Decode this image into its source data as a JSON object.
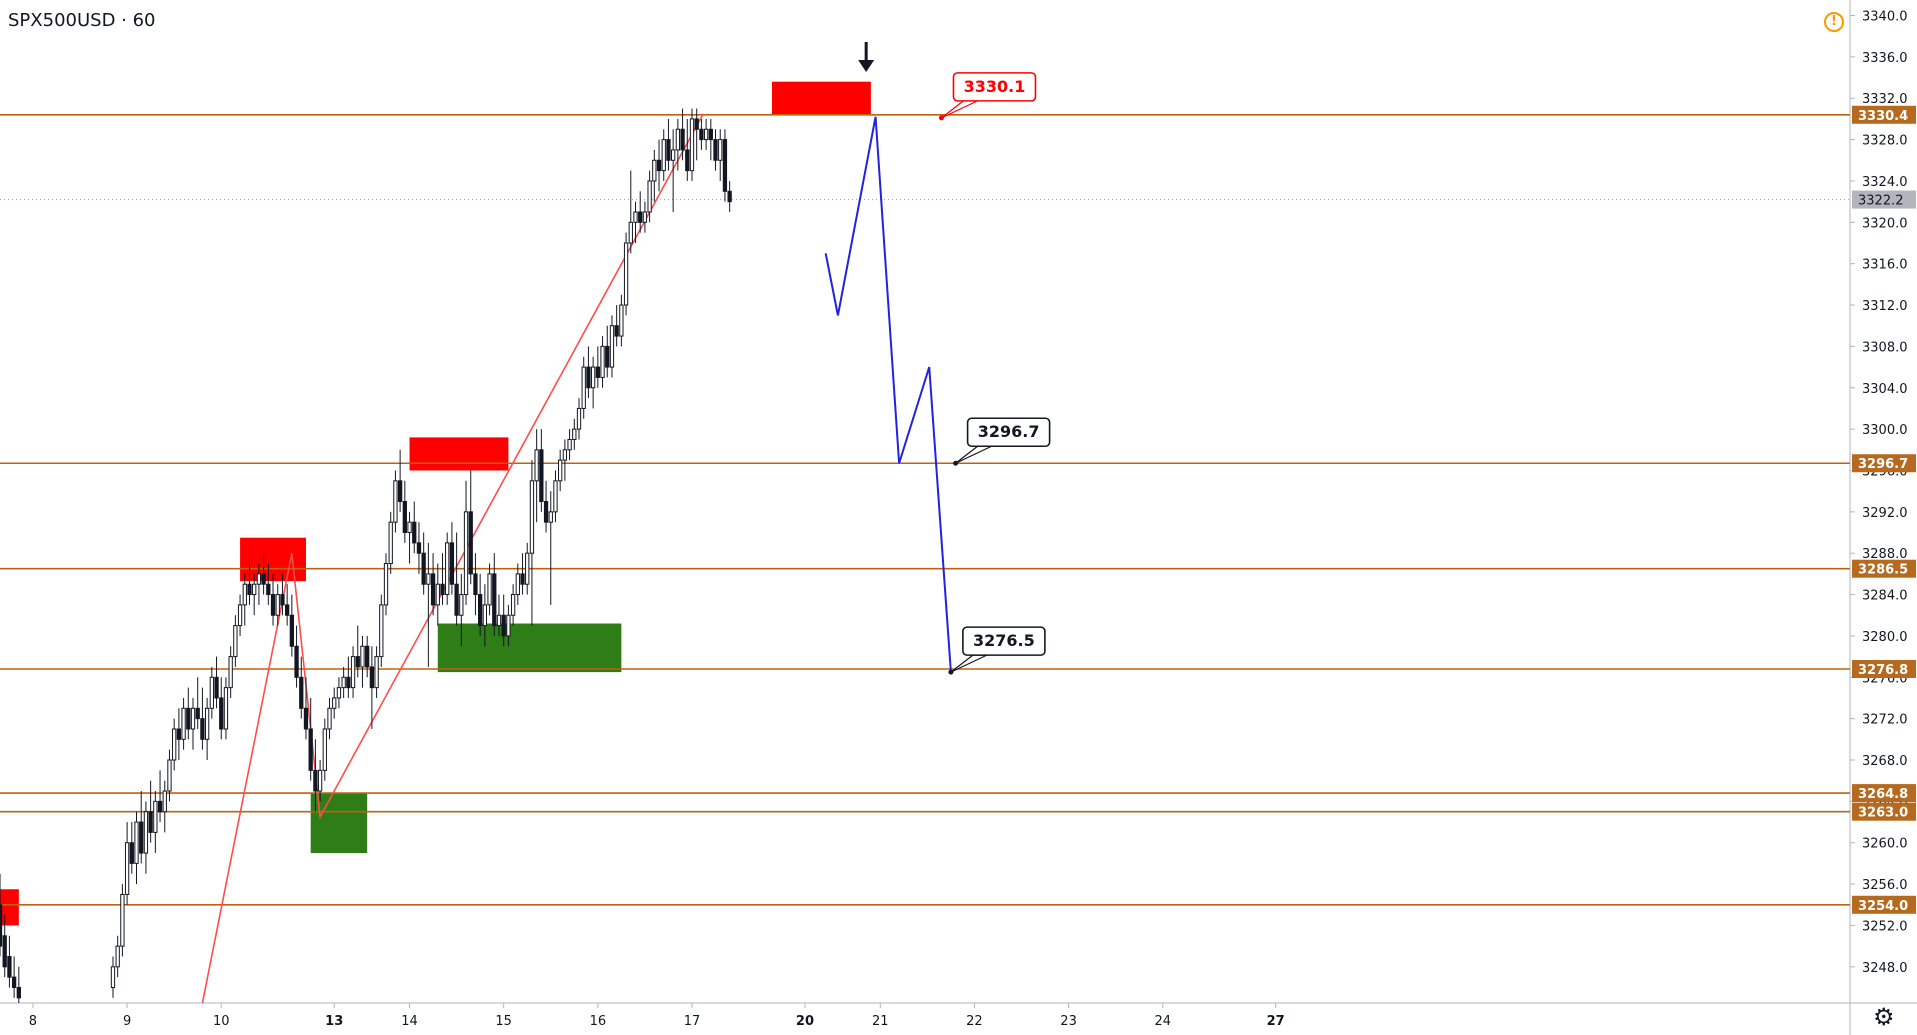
{
  "header": {
    "symbol": "SPX500USD · 60"
  },
  "alert_icon": "!",
  "settings_icon": "⚙",
  "chart_data": {
    "type": "candlestick",
    "title": "SPX500USD · 60",
    "y_range": [
      3244.5,
      3341.5
    ],
    "x_range": [
      7.65,
      27.3
    ],
    "y_ticks": [
      3248.0,
      3252.0,
      3256.0,
      3260.0,
      3264.0,
      3268.0,
      3272.0,
      3276.0,
      3280.0,
      3284.0,
      3288.0,
      3292.0,
      3296.0,
      3300.0,
      3304.0,
      3308.0,
      3312.0,
      3316.0,
      3320.0,
      3324.0,
      3328.0,
      3332.0,
      3336.0,
      3340.0
    ],
    "x_ticks": [
      {
        "label": "8",
        "x": 8.0,
        "bold": false
      },
      {
        "label": "9",
        "x": 9.0,
        "bold": false
      },
      {
        "label": "10",
        "x": 10.0,
        "bold": false
      },
      {
        "label": "13",
        "x": 11.2,
        "bold": true
      },
      {
        "label": "14",
        "x": 12.0,
        "bold": false
      },
      {
        "label": "15",
        "x": 13.0,
        "bold": false
      },
      {
        "label": "16",
        "x": 14.0,
        "bold": false
      },
      {
        "label": "17",
        "x": 15.0,
        "bold": false
      },
      {
        "label": "20",
        "x": 16.2,
        "bold": true
      },
      {
        "label": "21",
        "x": 17.0,
        "bold": false
      },
      {
        "label": "22",
        "x": 18.0,
        "bold": false
      },
      {
        "label": "23",
        "x": 19.0,
        "bold": false
      },
      {
        "label": "24",
        "x": 20.0,
        "bold": false
      },
      {
        "label": "27",
        "x": 21.2,
        "bold": true
      }
    ],
    "horizontal_levels": [
      {
        "value": 3330.4,
        "label": "3330.4"
      },
      {
        "value": 3296.7,
        "label": "3296.7"
      },
      {
        "value": 3286.5,
        "label": "3286.5"
      },
      {
        "value": 3276.8,
        "label": "3276.8"
      },
      {
        "value": 3264.8,
        "label": "3264.8"
      },
      {
        "value": 3263.0,
        "label": "3263.0"
      },
      {
        "value": 3254.0,
        "label": "3254.0"
      }
    ],
    "last_price": {
      "value": 3322.2,
      "label": "3322.2"
    },
    "candles": [
      [
        7.65,
        3254,
        3257,
        3249,
        3250
      ],
      [
        7.7,
        3251,
        3253,
        3247,
        3248
      ],
      [
        7.75,
        3249,
        3251,
        3246,
        3247
      ],
      [
        7.8,
        3247,
        3249,
        3245,
        3246
      ],
      [
        7.85,
        3246,
        3248,
        3244.5,
        3245
      ],
      [
        8.85,
        3246,
        3249,
        3245,
        3248
      ],
      [
        8.9,
        3248,
        3251,
        3247,
        3250
      ],
      [
        8.95,
        3250,
        3256,
        3249,
        3255
      ],
      [
        9.0,
        3255,
        3262,
        3254,
        3260
      ],
      [
        9.05,
        3260,
        3262,
        3257,
        3258
      ],
      [
        9.1,
        3258,
        3263,
        3256,
        3262
      ],
      [
        9.15,
        3262,
        3265,
        3258,
        3259
      ],
      [
        9.2,
        3259,
        3264,
        3257,
        3263
      ],
      [
        9.25,
        3263,
        3266,
        3260,
        3261
      ],
      [
        9.3,
        3261,
        3265,
        3259,
        3264
      ],
      [
        9.35,
        3264,
        3267,
        3262,
        3263
      ],
      [
        9.4,
        3263,
        3266,
        3261,
        3265
      ],
      [
        9.45,
        3265,
        3269,
        3264,
        3268
      ],
      [
        9.5,
        3268,
        3272,
        3267,
        3271
      ],
      [
        9.55,
        3271,
        3273,
        3268,
        3270
      ],
      [
        9.6,
        3270,
        3274,
        3269,
        3273
      ],
      [
        9.65,
        3273,
        3275,
        3270,
        3271
      ],
      [
        9.7,
        3271,
        3274,
        3269,
        3273
      ],
      [
        9.75,
        3273,
        3276,
        3271,
        3272
      ],
      [
        9.8,
        3272,
        3275,
        3269,
        3270
      ],
      [
        9.85,
        3270,
        3274,
        3268,
        3273
      ],
      [
        9.9,
        3273,
        3277,
        3272,
        3276
      ],
      [
        9.95,
        3276,
        3278,
        3273,
        3274
      ],
      [
        10.0,
        3274,
        3276,
        3270,
        3271
      ],
      [
        10.05,
        3271,
        3276,
        3270,
        3275
      ],
      [
        10.1,
        3275,
        3279,
        3274,
        3278
      ],
      [
        10.15,
        3278,
        3282,
        3277,
        3281
      ],
      [
        10.2,
        3281,
        3284,
        3280,
        3283
      ],
      [
        10.25,
        3283,
        3286,
        3281,
        3285
      ],
      [
        10.3,
        3285,
        3287,
        3283,
        3284
      ],
      [
        10.35,
        3284,
        3286,
        3282,
        3285
      ],
      [
        10.4,
        3285,
        3287,
        3283,
        3286
      ],
      [
        10.45,
        3286,
        3288,
        3284,
        3285
      ],
      [
        10.5,
        3285,
        3287,
        3283,
        3284
      ],
      [
        10.55,
        3284,
        3286,
        3281,
        3282
      ],
      [
        10.6,
        3282,
        3285,
        3281,
        3284
      ],
      [
        10.65,
        3284,
        3286,
        3282,
        3283
      ],
      [
        10.7,
        3283,
        3285,
        3281,
        3282
      ],
      [
        10.75,
        3282,
        3284,
        3278,
        3279
      ],
      [
        10.8,
        3279,
        3281,
        3275,
        3276
      ],
      [
        10.85,
        3276,
        3278,
        3272,
        3273
      ],
      [
        10.9,
        3273,
        3276,
        3270,
        3271
      ],
      [
        10.95,
        3271,
        3274,
        3266,
        3267
      ],
      [
        11.0,
        3267,
        3270,
        3263,
        3265
      ],
      [
        11.05,
        3265,
        3268,
        3264,
        3267
      ],
      [
        11.1,
        3267,
        3272,
        3266,
        3271
      ],
      [
        11.15,
        3271,
        3274,
        3270,
        3273
      ],
      [
        11.2,
        3273,
        3275,
        3272,
        3274
      ],
      [
        11.25,
        3274,
        3276,
        3273,
        3275
      ],
      [
        11.3,
        3275,
        3277,
        3274,
        3276
      ],
      [
        11.35,
        3276,
        3278,
        3274,
        3275
      ],
      [
        11.4,
        3275,
        3279,
        3274,
        3278
      ],
      [
        11.45,
        3278,
        3281,
        3276,
        3277
      ],
      [
        11.5,
        3277,
        3280,
        3275,
        3279
      ],
      [
        11.55,
        3279,
        3280,
        3276,
        3277
      ],
      [
        11.6,
        3277,
        3279,
        3271,
        3275
      ],
      [
        11.65,
        3275,
        3279,
        3274,
        3278
      ],
      [
        11.7,
        3278,
        3284,
        3277,
        3283
      ],
      [
        11.75,
        3283,
        3288,
        3282,
        3287
      ],
      [
        11.8,
        3287,
        3292,
        3286,
        3291
      ],
      [
        11.85,
        3291,
        3296,
        3290,
        3295
      ],
      [
        11.9,
        3295,
        3298,
        3292,
        3293
      ],
      [
        11.95,
        3293,
        3295,
        3289,
        3290
      ],
      [
        12.0,
        3290,
        3292,
        3287,
        3291
      ],
      [
        12.05,
        3291,
        3293,
        3288,
        3289
      ],
      [
        12.1,
        3289,
        3291,
        3286,
        3288
      ],
      [
        12.15,
        3288,
        3290,
        3284,
        3285
      ],
      [
        12.2,
        3285,
        3289,
        3277,
        3286
      ],
      [
        12.25,
        3286,
        3288,
        3282,
        3283
      ],
      [
        12.3,
        3283,
        3287,
        3281,
        3285
      ],
      [
        12.35,
        3285,
        3288,
        3283,
        3284
      ],
      [
        12.4,
        3284,
        3290,
        3283,
        3289
      ],
      [
        12.45,
        3289,
        3291,
        3284,
        3285
      ],
      [
        12.5,
        3285,
        3290,
        3281,
        3282
      ],
      [
        12.55,
        3282,
        3286,
        3279,
        3284
      ],
      [
        12.6,
        3284,
        3295,
        3283,
        3292
      ],
      [
        12.65,
        3292,
        3296,
        3285,
        3286
      ],
      [
        12.7,
        3286,
        3288,
        3282,
        3284
      ],
      [
        12.75,
        3284,
        3286,
        3280,
        3281
      ],
      [
        12.8,
        3281,
        3285,
        3279,
        3283
      ],
      [
        12.85,
        3283,
        3287,
        3282,
        3286
      ],
      [
        12.9,
        3286,
        3288,
        3280,
        3281
      ],
      [
        12.95,
        3281,
        3284,
        3280,
        3282
      ],
      [
        13.0,
        3282,
        3284,
        3279,
        3280
      ],
      [
        13.05,
        3280,
        3283,
        3279,
        3282
      ],
      [
        13.1,
        3282,
        3285,
        3281,
        3284
      ],
      [
        13.15,
        3284,
        3287,
        3283,
        3286
      ],
      [
        13.2,
        3286,
        3288,
        3284,
        3285
      ],
      [
        13.25,
        3285,
        3289,
        3284,
        3288
      ],
      [
        13.3,
        3288,
        3297,
        3281,
        3295
      ],
      [
        13.35,
        3295,
        3300,
        3291,
        3298
      ],
      [
        13.4,
        3298,
        3300,
        3292,
        3293
      ],
      [
        13.45,
        3293,
        3295,
        3290,
        3291
      ],
      [
        13.5,
        3291,
        3294,
        3283,
        3292
      ],
      [
        13.55,
        3292,
        3296,
        3291,
        3295
      ],
      [
        13.6,
        3295,
        3298,
        3294,
        3297
      ],
      [
        13.65,
        3297,
        3299,
        3295,
        3298
      ],
      [
        13.7,
        3298,
        3300,
        3297,
        3299
      ],
      [
        13.75,
        3299,
        3301,
        3298,
        3300
      ],
      [
        13.8,
        3300,
        3303,
        3299,
        3302
      ],
      [
        13.85,
        3302,
        3307,
        3301,
        3306
      ],
      [
        13.9,
        3306,
        3308,
        3303,
        3304
      ],
      [
        13.95,
        3304,
        3307,
        3302,
        3306
      ],
      [
        14.0,
        3306,
        3308,
        3304,
        3305
      ],
      [
        14.05,
        3305,
        3309,
        3304,
        3308
      ],
      [
        14.1,
        3308,
        3310,
        3305,
        3306
      ],
      [
        14.15,
        3306,
        3311,
        3305,
        3310
      ],
      [
        14.2,
        3310,
        3312,
        3308,
        3309
      ],
      [
        14.25,
        3309,
        3313,
        3308,
        3312
      ],
      [
        14.3,
        3312,
        3319,
        3311,
        3318
      ],
      [
        14.35,
        3318,
        3325,
        3317,
        3320
      ],
      [
        14.4,
        3320,
        3322,
        3318,
        3321
      ],
      [
        14.45,
        3321,
        3323,
        3319,
        3320
      ],
      [
        14.5,
        3320,
        3322,
        3319,
        3321
      ],
      [
        14.55,
        3321,
        3325,
        3320,
        3324
      ],
      [
        14.6,
        3324,
        3327,
        3322,
        3326
      ],
      [
        14.65,
        3326,
        3328,
        3323,
        3325
      ],
      [
        14.7,
        3325,
        3329,
        3324,
        3328
      ],
      [
        14.75,
        3328,
        3330,
        3325,
        3326
      ],
      [
        14.8,
        3326,
        3329,
        3321,
        3327
      ],
      [
        14.85,
        3327,
        3330,
        3325,
        3329
      ],
      [
        14.9,
        3329,
        3331,
        3326,
        3327
      ],
      [
        14.95,
        3327,
        3330,
        3324,
        3325
      ],
      [
        15.0,
        3325,
        3331,
        3324,
        3330
      ],
      [
        15.05,
        3330,
        3331,
        3326,
        3329
      ],
      [
        15.1,
        3329,
        3330,
        3327,
        3328
      ],
      [
        15.15,
        3328,
        3330,
        3327,
        3329
      ],
      [
        15.2,
        3329,
        3330,
        3326,
        3328
      ],
      [
        15.25,
        3328,
        3329,
        3325,
        3326
      ],
      [
        15.3,
        3326,
        3329,
        3324,
        3328
      ],
      [
        15.35,
        3328,
        3329,
        3322,
        3323
      ],
      [
        15.4,
        3323,
        3324,
        3321,
        3322
      ]
    ],
    "zones": [
      {
        "kind": "resistance",
        "x0": 7.65,
        "x1": 7.85,
        "y0": 3252.0,
        "y1": 3255.5
      },
      {
        "kind": "resistance",
        "x0": 10.2,
        "x1": 10.9,
        "y0": 3285.3,
        "y1": 3289.5
      },
      {
        "kind": "support",
        "x0": 10.95,
        "x1": 11.55,
        "y0": 3259.0,
        "y1": 3264.8
      },
      {
        "kind": "resistance",
        "x0": 12.0,
        "x1": 13.05,
        "y0": 3296.0,
        "y1": 3299.2
      },
      {
        "kind": "support",
        "x0": 12.3,
        "x1": 14.25,
        "y0": 3276.5,
        "y1": 3281.2
      },
      {
        "kind": "resistance",
        "x0": 15.85,
        "x1": 16.9,
        "y0": 3330.4,
        "y1": 3333.6
      }
    ],
    "trend_lines": [
      {
        "points": [
          [
            9.8,
            3244.5
          ],
          [
            10.75,
            3288.0
          ],
          [
            11.05,
            3262.5
          ],
          [
            15.12,
            3330.5
          ]
        ]
      }
    ],
    "projection": [
      [
        16.42,
        3317.0
      ],
      [
        16.55,
        3311.0
      ],
      [
        16.95,
        3330.2
      ],
      [
        17.2,
        3296.7
      ],
      [
        17.52,
        3306.0
      ],
      [
        17.75,
        3276.5
      ]
    ],
    "arrow": {
      "x": 16.85,
      "label": "down"
    },
    "callouts": [
      {
        "label": "3330.1",
        "x": 17.65,
        "y": 3330.1,
        "style": "red"
      },
      {
        "label": "3296.7",
        "x": 17.8,
        "y": 3296.7,
        "style": "black"
      },
      {
        "label": "3276.5",
        "x": 17.75,
        "y": 3276.5,
        "style": "black"
      }
    ],
    "colors": {
      "up": "#26a69a",
      "down": "#131722",
      "level": "#c06010",
      "level_label_bg": "#b56a1f",
      "resistance": "#ff0000",
      "support": "#2e7d17",
      "trend": "#ff4c4c",
      "projection": "#2222dd",
      "price_label": "#b2b5be"
    }
  }
}
